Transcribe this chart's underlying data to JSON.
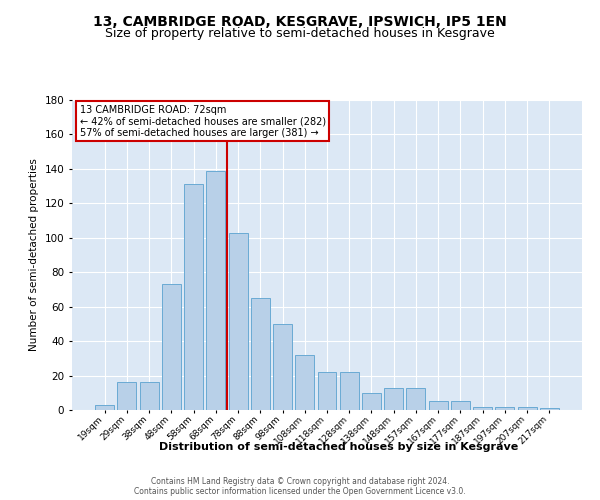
{
  "title": "13, CAMBRIDGE ROAD, KESGRAVE, IPSWICH, IP5 1EN",
  "subtitle": "Size of property relative to semi-detached houses in Kesgrave",
  "xlabel": "Distribution of semi-detached houses by size in Kesgrave",
  "ylabel": "Number of semi-detached properties",
  "footnote1": "Contains HM Land Registry data © Crown copyright and database right 2024.",
  "footnote2": "Contains public sector information licensed under the Open Government Licence v3.0.",
  "bar_labels": [
    "19sqm",
    "29sqm",
    "38sqm",
    "48sqm",
    "58sqm",
    "68sqm",
    "78sqm",
    "88sqm",
    "98sqm",
    "108sqm",
    "118sqm",
    "128sqm",
    "138sqm",
    "148sqm",
    "157sqm",
    "167sqm",
    "177sqm",
    "187sqm",
    "197sqm",
    "207sqm",
    "217sqm"
  ],
  "bar_values": [
    3,
    16,
    16,
    73,
    131,
    139,
    103,
    65,
    50,
    32,
    22,
    22,
    10,
    13,
    13,
    5,
    5,
    2,
    2,
    2,
    1
  ],
  "bar_color": "#b8d0e8",
  "bar_edgecolor": "#6aaad4",
  "property_label": "13 CAMBRIDGE ROAD: 72sqm",
  "pct_smaller": 42,
  "n_smaller": 282,
  "pct_larger": 57,
  "n_larger": 381,
  "vline_color": "#cc0000",
  "vline_x_index": 5.5,
  "annotation_box_edgecolor": "#cc0000",
  "ylim": [
    0,
    180
  ],
  "yticks": [
    0,
    20,
    40,
    60,
    80,
    100,
    120,
    140,
    160,
    180
  ],
  "bg_color": "#dce8f5",
  "title_fontsize": 10,
  "subtitle_fontsize": 9
}
